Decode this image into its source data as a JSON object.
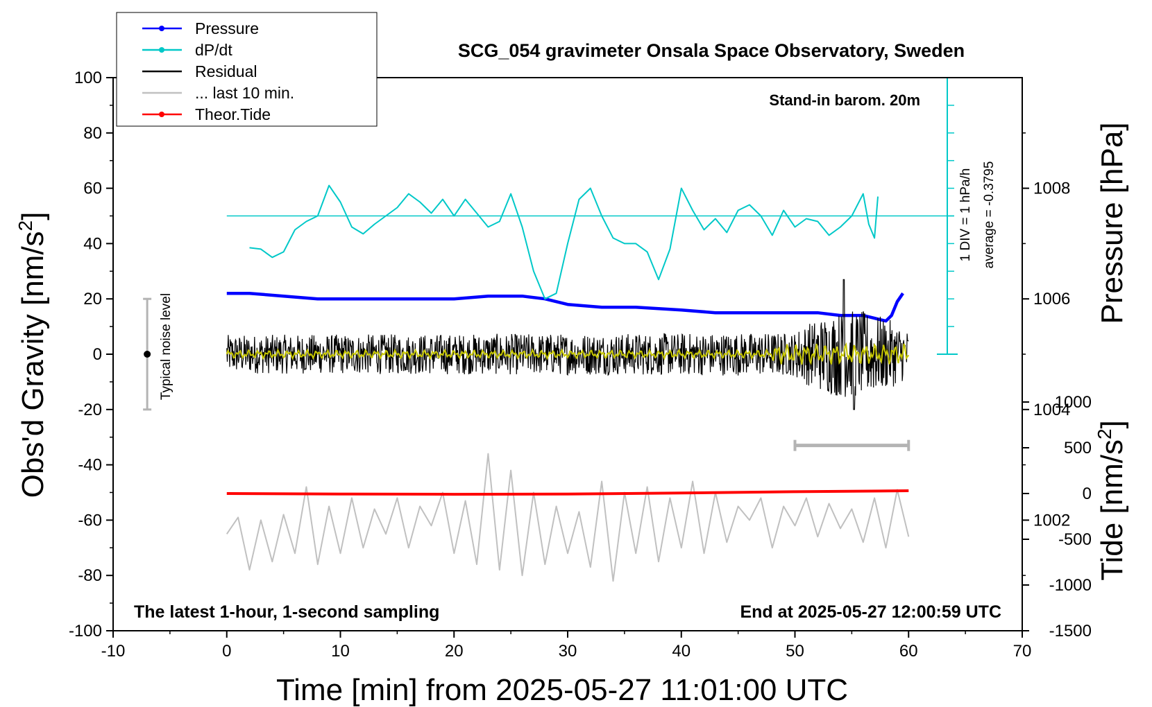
{
  "chart_data": {
    "type": "line",
    "title": "SCG_054 gravimeter Onsala Space Observatory, Sweden",
    "annotations": {
      "barometer": "Stand-in barom. 20m",
      "window": "The latest 1-hour, 1-second sampling",
      "end": "End at 2025-05-27 12:00:59 UTC",
      "noise": "Typical noise level",
      "dpdt_scale": "1 DIV = 1 hPa/h",
      "dpdt_average": "average = -0.3795"
    },
    "x_axis": {
      "label": "Time [min] from 2025-05-27 11:01:00 UTC",
      "range": [
        -10,
        70
      ],
      "ticks": [
        "-10",
        "0",
        "10",
        "20",
        "30",
        "40",
        "50",
        "60",
        "70"
      ]
    },
    "y_axis_left": {
      "label": "Obs'd Gravity [nm/s",
      "label_sup": "2",
      "label_end": "]",
      "range": [
        -100,
        100
      ],
      "ticks": [
        "100",
        "80",
        "60",
        "40",
        "20",
        "0",
        "-20",
        "-40",
        "-60",
        "-80",
        "-100"
      ]
    },
    "y_axis_pressure": {
      "label": "Pressure [hPa]",
      "range": [
        1000,
        1010
      ],
      "ticks": [
        "1008",
        "1006",
        "1004",
        "1002"
      ]
    },
    "y_axis_tide": {
      "label": "Tide [nm/s",
      "label_sup": "2",
      "label_end": "]",
      "range": [
        -1500,
        1500
      ],
      "ticks": [
        "1000",
        "500",
        "0",
        "-500",
        "-1000",
        "-1500"
      ]
    },
    "legend": [
      {
        "name": "Pressure",
        "color": "#0000ff",
        "marker": true
      },
      {
        "name": "dP/dt",
        "color": "#00c8c8",
        "marker": true
      },
      {
        "name": "Residual",
        "color": "#000000",
        "marker": false
      },
      {
        "name": "... last 10 min.",
        "color": "#c0c0c0",
        "marker": false
      },
      {
        "name": "Theor.Tide",
        "color": "#ff0000",
        "marker": true
      }
    ],
    "series": [
      {
        "name": "Pressure",
        "axis": "pressure",
        "color": "#0000ff",
        "x": [
          0,
          2,
          5,
          8,
          11,
          14,
          17,
          20,
          23,
          26,
          28,
          30,
          33,
          36,
          40,
          43,
          46,
          49,
          52,
          54,
          56,
          57,
          58,
          58.5,
          59,
          59.5
        ],
        "y": [
          1006.1,
          1006.1,
          1006.05,
          1006.0,
          1006.0,
          1006.0,
          1006.0,
          1006.0,
          1006.05,
          1006.05,
          1006.0,
          1005.9,
          1005.85,
          1005.85,
          1005.8,
          1005.75,
          1005.75,
          1005.75,
          1005.75,
          1005.7,
          1005.7,
          1005.65,
          1005.6,
          1005.7,
          1005.95,
          1006.1
        ]
      },
      {
        "name": "dP/dt",
        "axis": "left",
        "color": "#00c8c8",
        "x": [
          2,
          3,
          4,
          5,
          6,
          7,
          8,
          9,
          10,
          11,
          12,
          13,
          14,
          15,
          16,
          17,
          18,
          19,
          20,
          21,
          22,
          23,
          24,
          25,
          26,
          27,
          28,
          29,
          30,
          31,
          32,
          33,
          34,
          35,
          36,
          37,
          38,
          39,
          40,
          41,
          42,
          43,
          44,
          45,
          46,
          47,
          48,
          49,
          50,
          51,
          52,
          53,
          54,
          55,
          56,
          56.5,
          57,
          57.3
        ],
        "y": [
          38.5,
          38,
          35,
          37,
          45,
          48,
          50,
          61,
          55,
          46,
          43.5,
          47,
          50,
          53,
          58,
          55,
          51,
          56,
          50,
          56,
          51,
          46,
          48,
          58,
          46,
          30,
          20,
          22,
          40,
          56,
          60,
          50,
          42,
          40,
          40,
          37,
          27,
          38,
          60,
          52,
          45,
          49,
          44,
          52,
          54,
          50,
          43,
          52,
          46,
          49,
          48,
          43,
          46,
          50,
          58,
          47,
          42,
          57
        ]
      },
      {
        "name": "dP/dt average",
        "axis": "left",
        "color": "#00c8c8",
        "x": [
          0,
          64
        ],
        "y": [
          50,
          50
        ]
      },
      {
        "name": "Residual",
        "axis": "left",
        "color": "#000000",
        "x": [
          0,
          60
        ],
        "y_envelope": {
          "center": 0,
          "amplitude_start": 7,
          "amplitude_end": 8,
          "burst_range": [
            50,
            58
          ],
          "burst_amplitude": 16
        },
        "y_peak": [
          27,
          -20
        ]
      },
      {
        "name": "Residual smoothed",
        "axis": "left",
        "color": "#c8c800",
        "x": [
          0,
          60
        ],
        "y": [
          0,
          0
        ]
      },
      {
        "name": "... last 10 min.",
        "axis": "left",
        "color": "#c0c0c0",
        "x": [
          0,
          1,
          2,
          3,
          4,
          5,
          6,
          7,
          8,
          9,
          10,
          11,
          12,
          13,
          14,
          15,
          16,
          17,
          18,
          19,
          20,
          21,
          22,
          23,
          24,
          25,
          26,
          27,
          28,
          29,
          30,
          31,
          32,
          33,
          34,
          35,
          36,
          37,
          38,
          39,
          40,
          41,
          42,
          43,
          44,
          45,
          46,
          47,
          48,
          49,
          50,
          51,
          52,
          53,
          54,
          55,
          56,
          57,
          58,
          59,
          60
        ],
        "y": [
          -65,
          -59,
          -78,
          -60,
          -75,
          -58,
          -72,
          -48,
          -76,
          -55,
          -72,
          -52,
          -70,
          -56,
          -65,
          -52,
          -70,
          -55,
          -62,
          -50,
          -72,
          -53,
          -76,
          -36,
          -78,
          -42,
          -80,
          -50,
          -76,
          -55,
          -72,
          -57,
          -77,
          -46,
          -82,
          -50,
          -72,
          -48,
          -75,
          -52,
          -70,
          -46,
          -72,
          -50,
          -68,
          -55,
          -60,
          -52,
          -70,
          -55,
          -62,
          -52,
          -66,
          -54,
          -63,
          -56,
          -68,
          -52,
          -70,
          -49,
          -66
        ]
      },
      {
        "name": "Theor.Tide",
        "axis": "tide",
        "color": "#ff0000",
        "x": [
          0,
          10,
          20,
          30,
          40,
          50,
          60
        ],
        "y": [
          0,
          -5,
          -8,
          -5,
          5,
          20,
          30
        ]
      }
    ],
    "noise_bar": {
      "x": -7,
      "y_range": [
        -20,
        20
      ]
    },
    "window_bar": {
      "x_range": [
        50,
        60
      ],
      "y": -33
    }
  }
}
